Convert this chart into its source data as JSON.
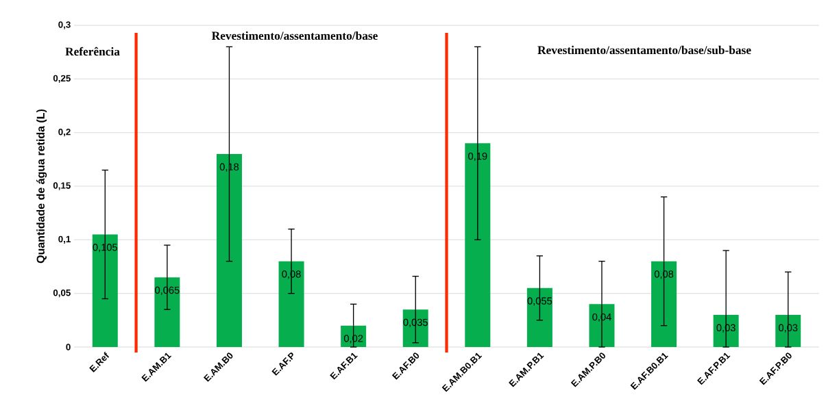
{
  "chart_data": {
    "type": "bar",
    "ylabel": "Quantidade de água retida (L)",
    "categories": [
      "E.Ref",
      "E.AM.B1",
      "E.AM.B0",
      "E.AF.P",
      "E.AF.B1",
      "E.AF.B0",
      "E.AM.B0.B1",
      "E.AM.P.B1",
      "E.AM.P.B0",
      "E.AF.B0.B1",
      "E.AF.P.B1",
      "E.AF.P.B0"
    ],
    "values": [
      0.105,
      0.065,
      0.18,
      0.08,
      0.02,
      0.035,
      0.19,
      0.055,
      0.04,
      0.08,
      0.03,
      0.03
    ],
    "value_labels": [
      "0,105",
      "0,065",
      "0,18",
      "0,08",
      "0,02",
      "0,035",
      "0,19",
      "0,055",
      "0,04",
      "0,08",
      "0,03",
      "0,03"
    ],
    "errors": [
      [
        0.045,
        0.165
      ],
      [
        0.035,
        0.095
      ],
      [
        0.08,
        0.28
      ],
      [
        0.05,
        0.11
      ],
      [
        0,
        0.04
      ],
      [
        0.004,
        0.066
      ],
      [
        0.1,
        0.28
      ],
      [
        0.025,
        0.085
      ],
      [
        0,
        0.08
      ],
      [
        0.02,
        0.14
      ],
      [
        0,
        0.09
      ],
      [
        0,
        0.07
      ]
    ],
    "color": "#06ae4e",
    "ylim": [
      0,
      0.3
    ],
    "yticks": [
      {
        "value": 0,
        "label": "0"
      },
      {
        "value": 0.05,
        "label": "0,05"
      },
      {
        "value": 0.1,
        "label": "0,1"
      },
      {
        "value": 0.15,
        "label": "0,15"
      },
      {
        "value": 0.2,
        "label": "0,2"
      },
      {
        "value": 0.25,
        "label": "0,25"
      },
      {
        "value": 0.3,
        "label": "0,3"
      }
    ],
    "grid": "y",
    "annotations": [
      "Referência",
      "Revestimento/assentamento/base",
      "Revestimento/assentamento/base/sub-base"
    ]
  }
}
